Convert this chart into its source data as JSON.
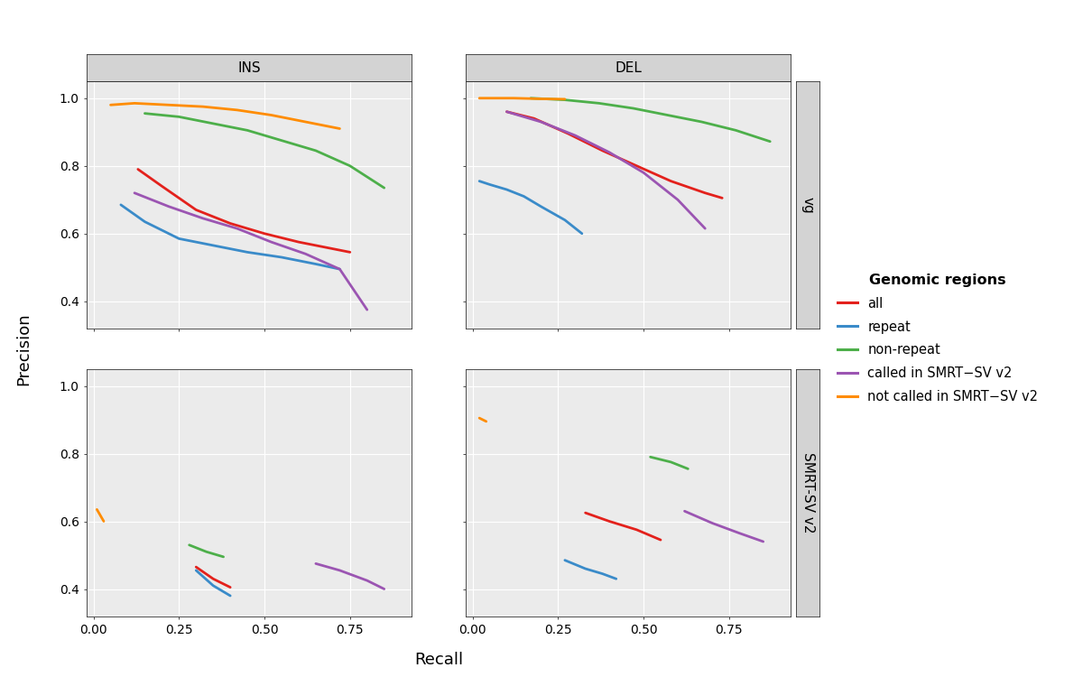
{
  "colors": {
    "all": "#E3211C",
    "repeat": "#3A8BC9",
    "non_repeat": "#4DAF4A",
    "called": "#9B55B2",
    "not_called": "#FF8C00"
  },
  "legend_labels": [
    "all",
    "repeat",
    "non-repeat",
    "called in SMRT-SV v2",
    "not called in SMRT-SV v2"
  ],
  "col_labels": [
    "INS",
    "DEL"
  ],
  "row_labels": [
    "vg",
    "SMRT-SV v2"
  ],
  "title": "Genomic regions",
  "xlabel": "Recall",
  "ylabel": "Precision",
  "panels": {
    "INS_vg": {
      "all": {
        "x": [
          0.13,
          0.2,
          0.3,
          0.4,
          0.5,
          0.6,
          0.7,
          0.75
        ],
        "y": [
          0.79,
          0.74,
          0.67,
          0.63,
          0.6,
          0.575,
          0.555,
          0.545
        ]
      },
      "repeat": {
        "x": [
          0.08,
          0.15,
          0.25,
          0.35,
          0.45,
          0.55,
          0.65,
          0.72
        ],
        "y": [
          0.685,
          0.635,
          0.585,
          0.565,
          0.545,
          0.53,
          0.51,
          0.495
        ]
      },
      "non_repeat": {
        "x": [
          0.15,
          0.25,
          0.35,
          0.45,
          0.55,
          0.65,
          0.75,
          0.85
        ],
        "y": [
          0.955,
          0.945,
          0.925,
          0.905,
          0.875,
          0.845,
          0.8,
          0.735
        ]
      },
      "called": {
        "x": [
          0.12,
          0.22,
          0.32,
          0.42,
          0.52,
          0.62,
          0.72,
          0.8
        ],
        "y": [
          0.72,
          0.68,
          0.645,
          0.615,
          0.575,
          0.54,
          0.495,
          0.375
        ]
      },
      "not_called": {
        "x": [
          0.05,
          0.12,
          0.22,
          0.32,
          0.42,
          0.52,
          0.62,
          0.72
        ],
        "y": [
          0.98,
          0.985,
          0.98,
          0.975,
          0.965,
          0.95,
          0.93,
          0.91
        ]
      }
    },
    "DEL_vg": {
      "all": {
        "x": [
          0.1,
          0.18,
          0.28,
          0.38,
          0.48,
          0.58,
          0.68,
          0.73
        ],
        "y": [
          0.96,
          0.94,
          0.895,
          0.845,
          0.8,
          0.755,
          0.72,
          0.705
        ]
      },
      "repeat": {
        "x": [
          0.02,
          0.05,
          0.1,
          0.15,
          0.2,
          0.27,
          0.32
        ],
        "y": [
          0.755,
          0.745,
          0.73,
          0.71,
          0.68,
          0.64,
          0.6
        ]
      },
      "non_repeat": {
        "x": [
          0.17,
          0.27,
          0.37,
          0.47,
          0.57,
          0.67,
          0.77,
          0.87
        ],
        "y": [
          1.0,
          0.995,
          0.985,
          0.97,
          0.95,
          0.93,
          0.905,
          0.872
        ]
      },
      "called": {
        "x": [
          0.1,
          0.2,
          0.3,
          0.4,
          0.5,
          0.6,
          0.68
        ],
        "y": [
          0.96,
          0.93,
          0.89,
          0.84,
          0.78,
          0.7,
          0.615
        ]
      },
      "not_called": {
        "x": [
          0.02,
          0.07,
          0.12,
          0.2,
          0.27
        ],
        "y": [
          1.0,
          1.0,
          1.0,
          0.998,
          0.997
        ]
      }
    },
    "INS_smrt": {
      "all": {
        "x": [
          0.3,
          0.35,
          0.4
        ],
        "y": [
          0.465,
          0.43,
          0.405
        ]
      },
      "repeat": {
        "x": [
          0.3,
          0.35,
          0.4
        ],
        "y": [
          0.455,
          0.41,
          0.38
        ]
      },
      "non_repeat": {
        "x": [
          0.28,
          0.33,
          0.38
        ],
        "y": [
          0.53,
          0.51,
          0.495
        ]
      },
      "called": {
        "x": [
          0.65,
          0.72,
          0.8,
          0.85
        ],
        "y": [
          0.475,
          0.455,
          0.425,
          0.4
        ]
      },
      "not_called": {
        "x": [
          0.01,
          0.03
        ],
        "y": [
          0.635,
          0.6
        ]
      }
    },
    "DEL_smrt": {
      "all": {
        "x": [
          0.33,
          0.4,
          0.48,
          0.55
        ],
        "y": [
          0.625,
          0.6,
          0.575,
          0.545
        ]
      },
      "repeat": {
        "x": [
          0.27,
          0.33,
          0.38,
          0.42
        ],
        "y": [
          0.485,
          0.46,
          0.445,
          0.43
        ]
      },
      "non_repeat": {
        "x": [
          0.52,
          0.58,
          0.63
        ],
        "y": [
          0.79,
          0.775,
          0.755
        ]
      },
      "called": {
        "x": [
          0.62,
          0.7,
          0.78,
          0.85
        ],
        "y": [
          0.63,
          0.595,
          0.565,
          0.54
        ]
      },
      "not_called": {
        "x": [
          0.02,
          0.04
        ],
        "y": [
          0.905,
          0.895
        ]
      }
    }
  },
  "background_color": "#FFFFFF",
  "panel_bg": "#EBEBEB",
  "strip_bg": "#D3D3D3",
  "grid_color": "#FFFFFF",
  "ylim": [
    0.32,
    1.05
  ],
  "xlim": [
    -0.02,
    0.93
  ],
  "yticks": [
    0.4,
    0.6,
    0.8,
    1.0
  ],
  "xticks": [
    0.0,
    0.25,
    0.5,
    0.75
  ]
}
